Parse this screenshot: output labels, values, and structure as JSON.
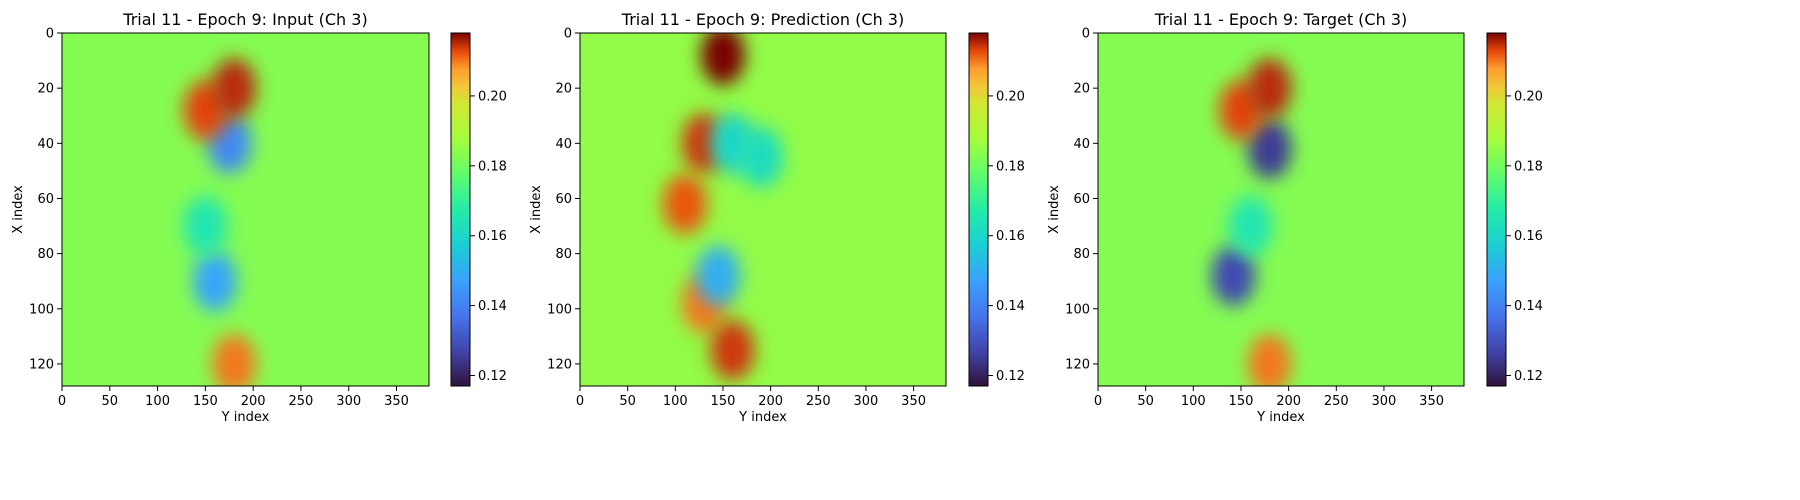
{
  "chart_data": [
    {
      "type": "heatmap",
      "title": "Trial 11 - Epoch 9: Input (Ch 3)",
      "xlabel": "Y index",
      "ylabel": "X index",
      "xlim": [
        0,
        384
      ],
      "ylim": [
        128,
        0
      ],
      "xticks": [
        0,
        50,
        100,
        150,
        200,
        250,
        300,
        350
      ],
      "yticks": [
        0,
        20,
        40,
        60,
        80,
        100,
        120
      ],
      "colormap": "turbo",
      "colorbar": {
        "range": [
          0.117,
          0.218
        ],
        "ticks": [
          "0.12",
          "0.14",
          "0.16",
          "0.18",
          "0.20"
        ]
      },
      "background_value": 0.183,
      "features": [
        {
          "x": 175,
          "y": 40,
          "value": 0.142
        },
        {
          "x": 160,
          "y": 90,
          "value": 0.148
        },
        {
          "x": 150,
          "y": 28,
          "value": 0.213
        },
        {
          "x": 180,
          "y": 20,
          "value": 0.215
        },
        {
          "x": 180,
          "y": 120,
          "value": 0.21
        },
        {
          "x": 150,
          "y": 70,
          "value": 0.165
        }
      ]
    },
    {
      "type": "heatmap",
      "title": "Trial 11 - Epoch 9: Prediction (Ch 3)",
      "xlabel": "Y index",
      "ylabel": "X index",
      "xlim": [
        0,
        384
      ],
      "ylim": [
        128,
        0
      ],
      "xticks": [
        0,
        50,
        100,
        150,
        200,
        250,
        300,
        350
      ],
      "yticks": [
        0,
        20,
        40,
        60,
        80,
        100,
        120
      ],
      "colormap": "turbo",
      "colorbar": {
        "range": [
          0.117,
          0.218
        ],
        "ticks": [
          "0.12",
          "0.14",
          "0.16",
          "0.18",
          "0.20"
        ]
      },
      "background_value": 0.185,
      "features": [
        {
          "x": 150,
          "y": 8,
          "value": 0.218
        },
        {
          "x": 130,
          "y": 40,
          "value": 0.214
        },
        {
          "x": 110,
          "y": 62,
          "value": 0.212
        },
        {
          "x": 130,
          "y": 98,
          "value": 0.21
        },
        {
          "x": 160,
          "y": 115,
          "value": 0.214
        },
        {
          "x": 160,
          "y": 40,
          "value": 0.16
        },
        {
          "x": 145,
          "y": 88,
          "value": 0.15
        },
        {
          "x": 190,
          "y": 45,
          "value": 0.162
        }
      ]
    },
    {
      "type": "heatmap",
      "title": "Trial 11 - Epoch 9: Target (Ch 3)",
      "xlabel": "Y index",
      "ylabel": "X index",
      "xlim": [
        0,
        384
      ],
      "ylim": [
        128,
        0
      ],
      "xticks": [
        0,
        50,
        100,
        150,
        200,
        250,
        300,
        350
      ],
      "yticks": [
        0,
        20,
        40,
        60,
        80,
        100,
        120
      ],
      "colormap": "turbo",
      "colorbar": {
        "range": [
          0.117,
          0.218
        ],
        "ticks": [
          "0.12",
          "0.14",
          "0.16",
          "0.18",
          "0.20"
        ]
      },
      "background_value": 0.183,
      "features": [
        {
          "x": 180,
          "y": 42,
          "value": 0.125
        },
        {
          "x": 142,
          "y": 88,
          "value": 0.128
        },
        {
          "x": 150,
          "y": 28,
          "value": 0.213
        },
        {
          "x": 180,
          "y": 20,
          "value": 0.215
        },
        {
          "x": 180,
          "y": 120,
          "value": 0.21
        },
        {
          "x": 160,
          "y": 70,
          "value": 0.165
        }
      ]
    }
  ]
}
